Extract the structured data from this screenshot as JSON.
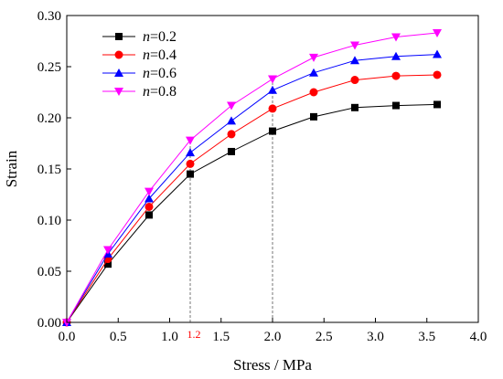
{
  "chart_data": {
    "type": "line",
    "xlabel": "Stress / MPa",
    "ylabel": "Strain",
    "xlim": [
      0.0,
      4.0
    ],
    "ylim": [
      0.0,
      0.3
    ],
    "xticks": [
      "0.0",
      "0.5",
      "1.0",
      "1.5",
      "2.0",
      "2.5",
      "3.0",
      "3.5",
      "4.0"
    ],
    "yticks": [
      "0.00",
      "0.05",
      "0.10",
      "0.15",
      "0.20",
      "0.25",
      "0.30"
    ],
    "x": [
      0,
      0.4,
      0.8,
      1.2,
      1.6,
      2.0,
      2.4,
      2.8,
      3.2,
      3.6
    ],
    "series": [
      {
        "name": "n=0.2",
        "legend_var": "n",
        "legend_val": "=0.2",
        "color": "#000000",
        "marker": "square",
        "values": [
          0,
          0.057,
          0.105,
          0.145,
          0.167,
          0.187,
          0.201,
          0.21,
          0.212,
          0.213
        ]
      },
      {
        "name": "n=0.4",
        "legend_var": "n",
        "legend_val": "=0.4",
        "color": "#ff0000",
        "marker": "circle",
        "values": [
          0,
          0.062,
          0.113,
          0.155,
          0.184,
          0.209,
          0.225,
          0.237,
          0.241,
          0.242
        ]
      },
      {
        "name": "n=0.6",
        "legend_var": "n",
        "legend_val": "=0.6",
        "color": "#0000ff",
        "marker": "triangle-up",
        "values": [
          0,
          0.067,
          0.121,
          0.166,
          0.197,
          0.227,
          0.244,
          0.256,
          0.26,
          0.262
        ]
      },
      {
        "name": "n=0.8",
        "legend_var": "n",
        "legend_val": "=0.8",
        "color": "#ff00ff",
        "marker": "triangle-down",
        "values": [
          0,
          0.071,
          0.128,
          0.178,
          0.212,
          0.238,
          0.259,
          0.271,
          0.279,
          0.283
        ]
      }
    ],
    "reference_lines": [
      {
        "x": 1.2,
        "label": "1.2",
        "label_color": "#ff0000"
      },
      {
        "x": 2.0
      }
    ],
    "legend_position": "top-left",
    "grid": false
  }
}
